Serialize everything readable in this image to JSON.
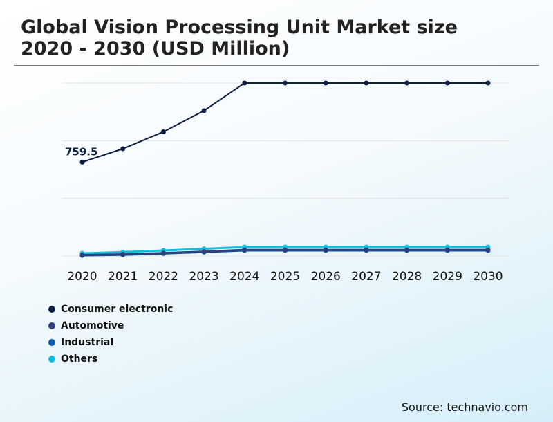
{
  "title": "Global Vision Processing Unit Market size 2020 - 2030 (USD Million)",
  "source": "Source: technavio.com",
  "chart_data": {
    "type": "line",
    "title": "Global Vision Processing Unit Market size 2020 - 2030 (USD Million)",
    "x": [
      "2020",
      "2021",
      "2022",
      "2023",
      "2024",
      "2025",
      "2026",
      "2027",
      "2028",
      "2029",
      "2030"
    ],
    "ylim": [
      0,
      1400
    ],
    "grid": true,
    "legend": "bottom-left",
    "annotations": [
      {
        "series": "Consumer electronic",
        "x": "2020",
        "label": "759.5"
      }
    ],
    "series": [
      {
        "name": "Consumer electronic",
        "color": "#0d1f45",
        "values": [
          759.5,
          868,
          1005,
          1176,
          1400,
          1400,
          1400,
          1400,
          1400,
          1400,
          1400
        ]
      },
      {
        "name": "Automotive",
        "color": "#2e3f7a",
        "values": [
          8,
          14,
          24,
          36,
          50,
          50,
          50,
          50,
          50,
          50,
          50
        ]
      },
      {
        "name": "Industrial",
        "color": "#0b5aa8",
        "values": [
          5,
          10,
          20,
          32,
          45,
          45,
          45,
          45,
          45,
          45,
          45
        ]
      },
      {
        "name": "Others",
        "color": "#0fbfe0",
        "values": [
          22,
          32,
          45,
          58,
          73,
          73,
          73,
          73,
          73,
          73,
          73
        ]
      }
    ]
  }
}
